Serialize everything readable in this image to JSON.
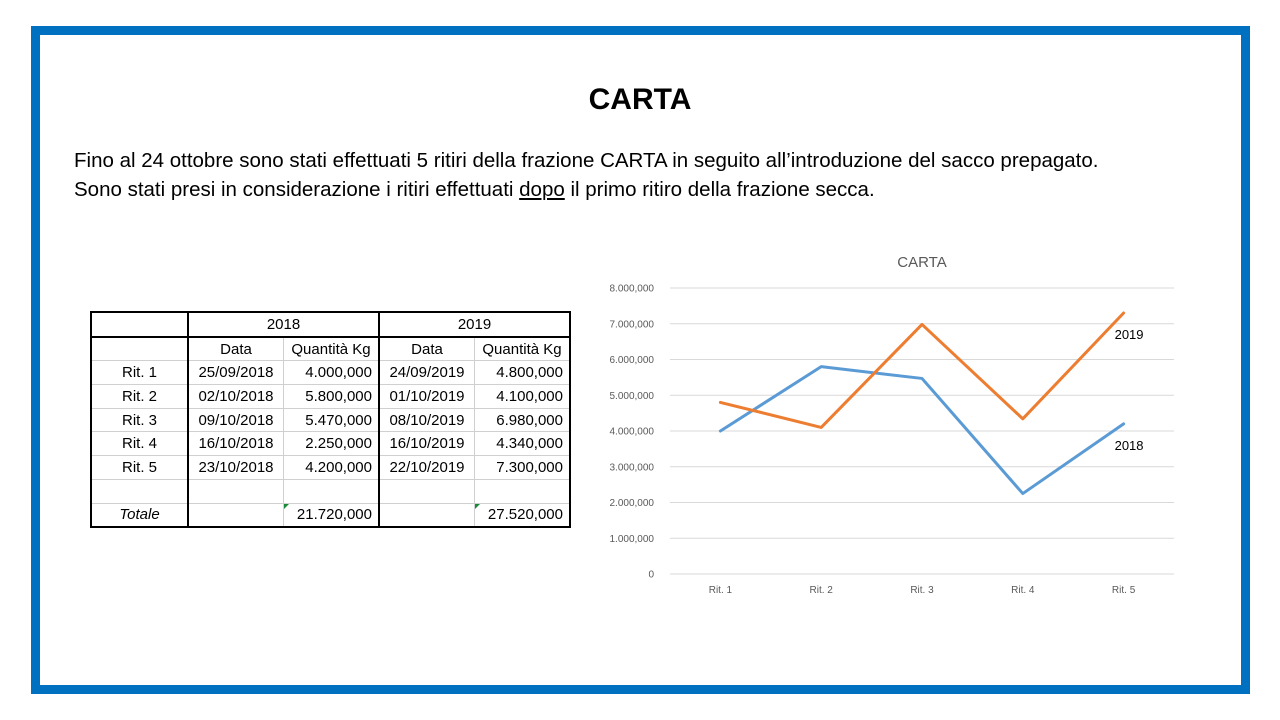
{
  "slide": {
    "title": "CARTA",
    "intro_line1": "Fino al 24 ottobre sono stati effettuati 5 ritiri della frazione CARTA in seguito all’introduzione del sacco prepagato.",
    "intro_line2_a": "Sono stati presi in considerazione i ritiri effettuati ",
    "intro_line2_underlined": "dopo",
    "intro_line2_b": " il primo ritiro della frazione secca."
  },
  "table": {
    "year_a": "2018",
    "year_b": "2019",
    "col_date": "Data",
    "col_qty": "Quantità Kg",
    "rows": [
      {
        "label": "Rit. 1",
        "date_a": "25/09/2018",
        "qty_a": "4.000,000",
        "date_b": "24/09/2019",
        "qty_b": "4.800,000"
      },
      {
        "label": "Rit. 2",
        "date_a": "02/10/2018",
        "qty_a": "5.800,000",
        "date_b": "01/10/2019",
        "qty_b": "4.100,000"
      },
      {
        "label": "Rit. 3",
        "date_a": "09/10/2018",
        "qty_a": "5.470,000",
        "date_b": "08/10/2019",
        "qty_b": "6.980,000"
      },
      {
        "label": "Rit. 4",
        "date_a": "16/10/2018",
        "qty_a": "2.250,000",
        "date_b": "16/10/2019",
        "qty_b": "4.340,000"
      },
      {
        "label": "Rit. 5",
        "date_a": "23/10/2018",
        "qty_a": "4.200,000",
        "date_b": "22/10/2019",
        "qty_b": "7.300,000"
      }
    ],
    "total_label": "Totale",
    "total_a": "21.720,000",
    "total_b": "27.520,000"
  },
  "chart_data": {
    "type": "line",
    "title": "CARTA",
    "categories": [
      "Rit. 1",
      "Rit. 2",
      "Rit. 3",
      "Rit. 4",
      "Rit. 5"
    ],
    "ylim": [
      0,
      8000000
    ],
    "y_ticks": [
      0,
      1000000,
      2000000,
      3000000,
      4000000,
      5000000,
      6000000,
      7000000,
      8000000
    ],
    "y_tick_labels": [
      "0",
      "1.000,000",
      "2.000,000",
      "3.000,000",
      "4.000,000",
      "5.000,000",
      "6.000,000",
      "7.000,000",
      "8.000,000"
    ],
    "grid": true,
    "series": [
      {
        "name": "2018",
        "color": "#5b9bd5",
        "values": [
          4000000,
          5800000,
          5470000,
          2250000,
          4200000
        ]
      },
      {
        "name": "2019",
        "color": "#ed7d31",
        "values": [
          4800000,
          4100000,
          6980000,
          4340000,
          7300000
        ]
      }
    ]
  },
  "colors": {
    "frame": "#0070c0",
    "grid": "#d9d9d9"
  }
}
